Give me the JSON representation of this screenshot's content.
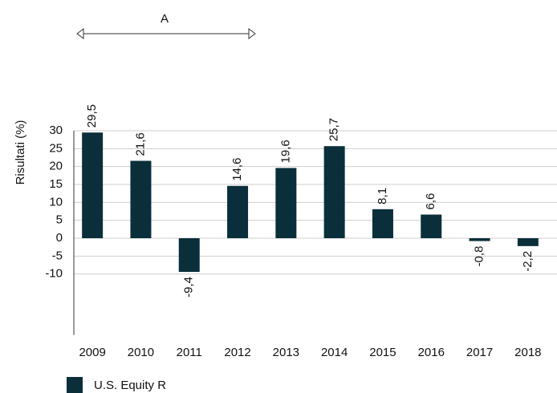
{
  "chart_data": {
    "type": "bar",
    "ylabel": "Risultati (%)",
    "annotation": "A",
    "categories": [
      "2009",
      "2010",
      "2011",
      "2012",
      "2013",
      "2014",
      "2015",
      "2016",
      "2017",
      "2018"
    ],
    "series": [
      {
        "name": "U.S. Equity R",
        "color": "#0b2f3a",
        "values": [
          29.5,
          21.6,
          -9.4,
          14.6,
          19.6,
          25.7,
          8.1,
          6.6,
          -0.8,
          -2.2
        ],
        "value_labels": [
          "29,5",
          "21,6",
          "-9,4",
          "14,6",
          "19,6",
          "25,7",
          "8,1",
          "6,6",
          "-0,8",
          "-2,2"
        ]
      }
    ],
    "ylim": [
      -27,
      30
    ],
    "yticks": [
      30,
      25,
      20,
      15,
      10,
      5,
      0,
      -5,
      -10
    ],
    "grid": true
  }
}
